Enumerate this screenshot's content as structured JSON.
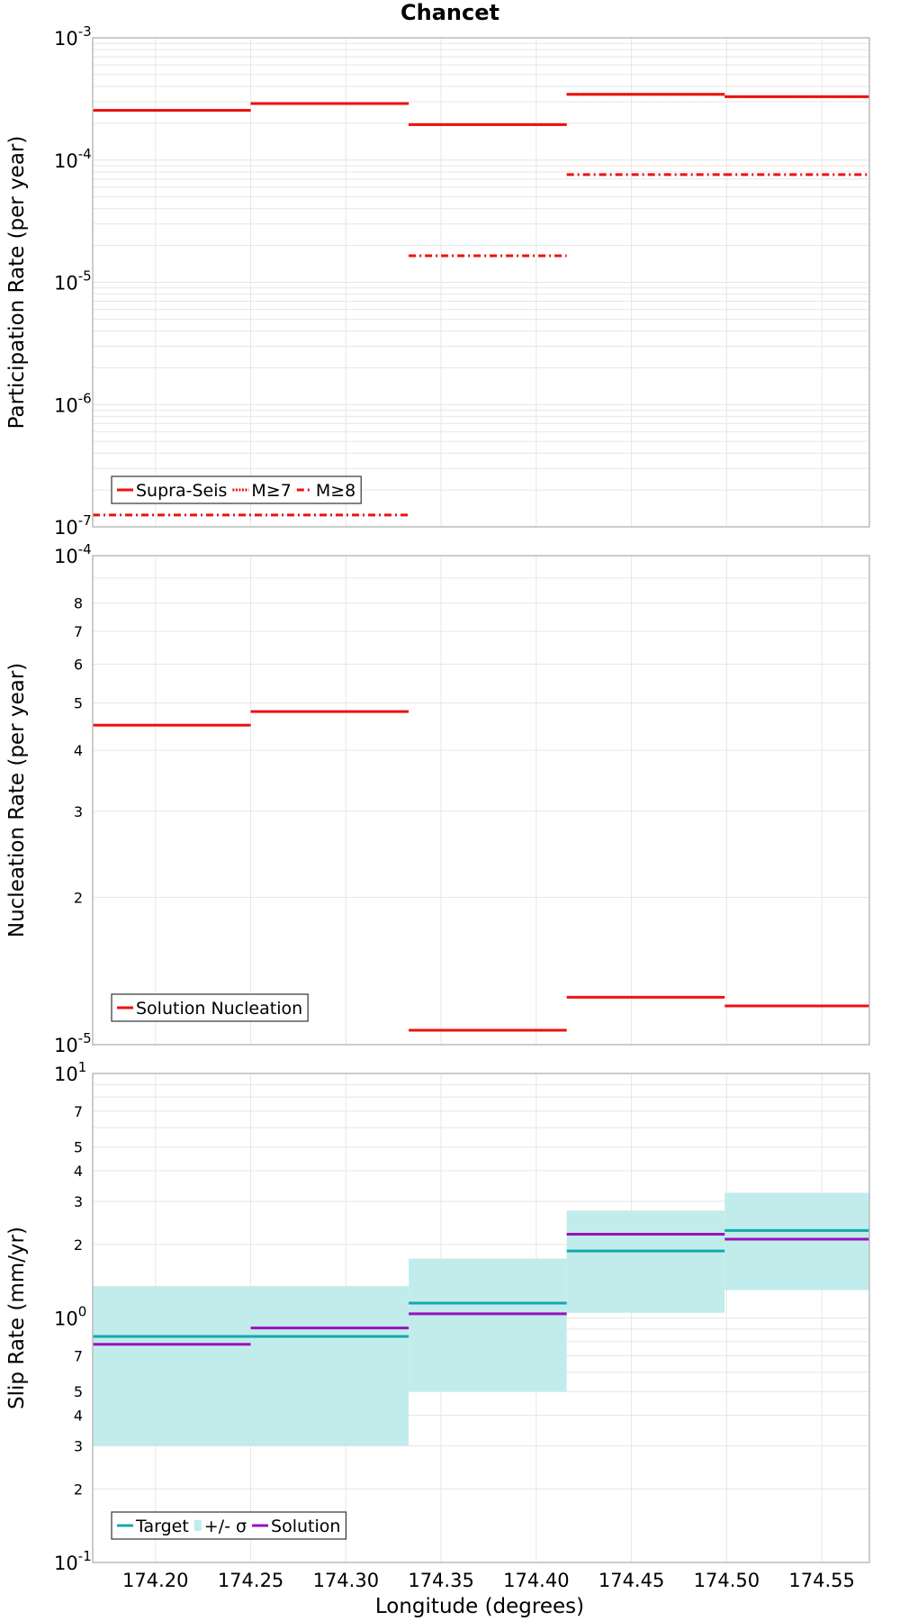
{
  "title": "Chancet",
  "xlabel": "Longitude (degrees)",
  "xlim": [
    174.167,
    174.575
  ],
  "xticks": [
    "174.20",
    "174.25",
    "174.30",
    "174.35",
    "174.40",
    "174.45",
    "174.50",
    "174.55"
  ],
  "colors": {
    "red": "#ee1111",
    "target": "#11aaaa",
    "band": "#c2ecec",
    "solution": "#9911bb",
    "grid": "#e6e6e6",
    "frame": "#bbbbbb"
  },
  "chart_data": [
    {
      "type": "line",
      "ylabel": "Participation Rate (per year)",
      "yscale": "log",
      "ylim": [
        1e-07,
        0.001
      ],
      "yticks": [
        {
          "value": 1e-07,
          "base": "10",
          "exp": "-7"
        },
        {
          "value": 1e-06,
          "base": "10",
          "exp": "-6"
        },
        {
          "value": 1e-05,
          "base": "10",
          "exp": "-5"
        },
        {
          "value": 0.0001,
          "base": "10",
          "exp": "-4"
        },
        {
          "value": 0.001,
          "base": "10",
          "exp": "-3"
        }
      ],
      "minor_labels": [],
      "grid": true,
      "legend_position": "bottom-left",
      "legend": [
        {
          "label": "Supra-Seis",
          "style": "solid"
        },
        {
          "label": "M≥7",
          "style": "dotted"
        },
        {
          "label": "M≥8",
          "style": "dashdot"
        }
      ],
      "series": [
        {
          "name": "Supra-Seis",
          "style": "solid",
          "segments": [
            {
              "x0": 174.167,
              "x1": 174.25,
              "y": 0.000255
            },
            {
              "x0": 174.25,
              "x1": 174.333,
              "y": 0.00029
            },
            {
              "x0": 174.333,
              "x1": 174.416,
              "y": 0.000195
            },
            {
              "x0": 174.416,
              "x1": 174.499,
              "y": 0.000345
            },
            {
              "x0": 174.499,
              "x1": 174.575,
              "y": 0.00033
            }
          ]
        },
        {
          "name": "M≥7",
          "style": "dotted",
          "segments": [
            {
              "x0": 174.167,
              "x1": 174.25,
              "y": 0.000255
            },
            {
              "x0": 174.25,
              "x1": 174.333,
              "y": 0.00029
            },
            {
              "x0": 174.333,
              "x1": 174.416,
              "y": 0.000195
            },
            {
              "x0": 174.416,
              "x1": 174.499,
              "y": 0.000345
            },
            {
              "x0": 174.499,
              "x1": 174.575,
              "y": 0.00033
            }
          ]
        },
        {
          "name": "M≥8",
          "style": "dashdot",
          "segments": [
            {
              "x0": 174.167,
              "x1": 174.333,
              "y": 1.25e-07
            },
            {
              "x0": 174.333,
              "x1": 174.416,
              "y": 1.65e-05
            },
            {
              "x0": 174.416,
              "x1": 174.499,
              "y": 7.6e-05
            },
            {
              "x0": 174.499,
              "x1": 174.575,
              "y": 7.6e-05
            }
          ]
        }
      ]
    },
    {
      "type": "line",
      "ylabel": "Nucleation Rate (per year)",
      "yscale": "log",
      "ylim": [
        1e-05,
        0.0001
      ],
      "yticks": [
        {
          "value": 1e-05,
          "base": "10",
          "exp": "-5"
        },
        {
          "value": 0.0001,
          "base": "10",
          "exp": "-4"
        }
      ],
      "minor_labels": [
        {
          "value": 2e-05,
          "label": "2"
        },
        {
          "value": 3e-05,
          "label": "3"
        },
        {
          "value": 4e-05,
          "label": "4"
        },
        {
          "value": 5e-05,
          "label": "5"
        },
        {
          "value": 6e-05,
          "label": "6"
        },
        {
          "value": 7e-05,
          "label": "7"
        },
        {
          "value": 8e-05,
          "label": "8"
        }
      ],
      "grid": true,
      "legend_position": "bottom-left",
      "legend": [
        {
          "label": "Solution Nucleation",
          "style": "solid"
        }
      ],
      "series": [
        {
          "name": "Solution Nucleation",
          "style": "solid",
          "segments": [
            {
              "x0": 174.167,
              "x1": 174.25,
              "y": 4.5e-05
            },
            {
              "x0": 174.25,
              "x1": 174.333,
              "y": 4.8e-05
            },
            {
              "x0": 174.333,
              "x1": 174.416,
              "y": 1.07e-05
            },
            {
              "x0": 174.416,
              "x1": 174.499,
              "y": 1.25e-05
            },
            {
              "x0": 174.499,
              "x1": 174.575,
              "y": 1.2e-05
            }
          ]
        }
      ]
    },
    {
      "type": "line",
      "ylabel": "Slip Rate (mm/yr)",
      "yscale": "log",
      "ylim": [
        0.1,
        10
      ],
      "yticks": [
        {
          "value": 0.1,
          "base": "10",
          "exp": "-1"
        },
        {
          "value": 1,
          "base": "10",
          "exp": "0"
        },
        {
          "value": 10,
          "base": "10",
          "exp": "1"
        }
      ],
      "minor_labels": [
        {
          "value": 0.2,
          "label": "2"
        },
        {
          "value": 0.3,
          "label": "3"
        },
        {
          "value": 0.4,
          "label": "4"
        },
        {
          "value": 0.5,
          "label": "5"
        },
        {
          "value": 0.7,
          "label": "7"
        },
        {
          "value": 2,
          "label": "2"
        },
        {
          "value": 3,
          "label": "3"
        },
        {
          "value": 4,
          "label": "4"
        },
        {
          "value": 5,
          "label": "5"
        },
        {
          "value": 7,
          "label": "7"
        }
      ],
      "grid": true,
      "legend_position": "bottom-left",
      "legend": [
        {
          "label": "Target",
          "style": "target"
        },
        {
          "label": "+/- σ",
          "style": "band"
        },
        {
          "label": "Solution",
          "style": "solution"
        }
      ],
      "bands": [
        {
          "x0": 174.167,
          "x1": 174.333,
          "lo": 0.3,
          "hi": 1.35
        },
        {
          "x0": 174.333,
          "x1": 174.416,
          "lo": 0.5,
          "hi": 1.75
        },
        {
          "x0": 174.416,
          "x1": 174.499,
          "lo": 1.05,
          "hi": 2.75
        },
        {
          "x0": 174.499,
          "x1": 174.575,
          "lo": 1.3,
          "hi": 3.25
        }
      ],
      "series": [
        {
          "name": "Target",
          "style": "target",
          "segments": [
            {
              "x0": 174.167,
              "x1": 174.25,
              "y": 0.84
            },
            {
              "x0": 174.25,
              "x1": 174.333,
              "y": 0.84
            },
            {
              "x0": 174.333,
              "x1": 174.416,
              "y": 1.15
            },
            {
              "x0": 174.416,
              "x1": 174.499,
              "y": 1.88
            },
            {
              "x0": 174.499,
              "x1": 174.575,
              "y": 2.28
            }
          ]
        },
        {
          "name": "Solution",
          "style": "solution",
          "segments": [
            {
              "x0": 174.167,
              "x1": 174.25,
              "y": 0.78
            },
            {
              "x0": 174.25,
              "x1": 174.333,
              "y": 0.91
            },
            {
              "x0": 174.333,
              "x1": 174.416,
              "y": 1.04
            },
            {
              "x0": 174.416,
              "x1": 174.499,
              "y": 2.2
            },
            {
              "x0": 174.499,
              "x1": 174.575,
              "y": 2.1
            }
          ]
        }
      ]
    }
  ]
}
